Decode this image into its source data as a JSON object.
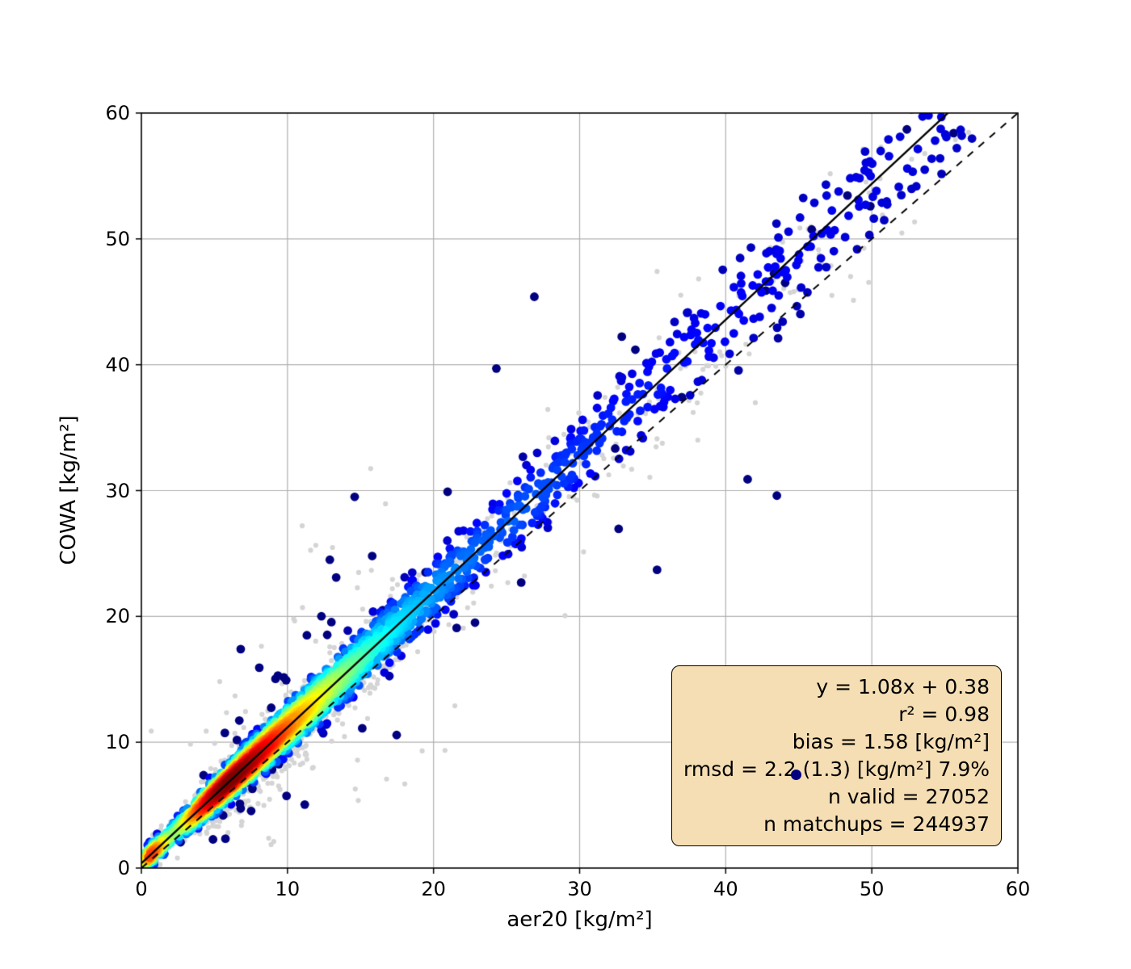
{
  "chart_data": {
    "type": "scatter",
    "title": "",
    "xlabel": "aer20 [kg/m²]",
    "ylabel": "COWA [kg/m²]",
    "xlim": [
      0,
      60
    ],
    "ylim": [
      0,
      60
    ],
    "xticks": [
      0,
      10,
      20,
      30,
      40,
      50,
      60
    ],
    "yticks": [
      0,
      10,
      20,
      30,
      40,
      50,
      60
    ],
    "grid": true,
    "grid_color": "#b0b0b0",
    "axes_color": "#000000",
    "identity_line": {
      "style": "dashed",
      "color": "#000000",
      "from": [
        0,
        0
      ],
      "to": [
        60,
        60
      ]
    },
    "fit_line": {
      "style": "solid",
      "color": "#000000",
      "slope": 1.08,
      "intercept": 0.38
    },
    "stats": {
      "equation": "y = 1.08x + 0.38",
      "r2": 0.98,
      "bias_kg_m2": 1.58,
      "rmsd_kg_m2": "2.2 (1.3)",
      "rmsd_percent": 7.9,
      "n_valid": 27052,
      "n_matchups": 244937
    },
    "series": [
      {
        "name": "matchups",
        "style": "small light gray dots",
        "color": "#d4d4d4"
      },
      {
        "name": "valid retrievals",
        "style": "density-colored dots, jet colormap (navy = low density, red = high density)",
        "densest_region_x": [
          5,
          11
        ]
      }
    ],
    "stray_point": {
      "x": 44.8,
      "y": 7.4,
      "color": "#000080",
      "radius": 6.5
    },
    "render": {
      "seed": 20,
      "gray": {
        "n": 1300,
        "color": "#d4d4d4",
        "radius": 3.1,
        "center_slope": 1.05,
        "center_intercept": 0.2,
        "sigma_base": 0.9,
        "sigma_slope": 0.055,
        "outlier_frac": 0.07,
        "outlier_mult": 4.0
      },
      "valid": {
        "n": 3000,
        "radius": 5.4,
        "sigma_base": 0.35,
        "sigma_slope": 0.045,
        "gamma": 0.45
      },
      "extra_outliers": {
        "n": 85,
        "radius": 5.4,
        "sigma_base": 2.2,
        "sigma_slope": 0.09
      },
      "mixture": [
        {
          "w": 0.06,
          "mu": 0.2,
          "s": 0.8
        },
        {
          "w": 0.72,
          "mu": 2.1,
          "s": 0.45
        },
        {
          "w": 0.16,
          "mu": 3.0,
          "s": 0.5
        },
        {
          "w": 0.06,
          "uniform": [
            25,
            57
          ]
        }
      ],
      "notable_outliers": [
        [
          26.9,
          45.4
        ],
        [
          24.3,
          39.7
        ],
        [
          14.6,
          29.5
        ],
        [
          15.8,
          24.8
        ],
        [
          35.3,
          23.7
        ],
        [
          6.8,
          17.4
        ],
        [
          12.9,
          24.5
        ],
        [
          41.5,
          30.9
        ],
        [
          52.4,
          58.7
        ],
        [
          55.6,
          58.4
        ],
        [
          49.9,
          52.6
        ],
        [
          43.5,
          29.6
        ]
      ]
    }
  },
  "axis_labels": {
    "x": "aer20 [kg/m²]",
    "y": "COWA [kg/m²]"
  },
  "stats_box": {
    "background": "#f5deb3",
    "border_color": "#000000",
    "lines": [
      "y = 1.08x + 0.38",
      "r² = 0.98",
      "bias = 1.58 [kg/m²]",
      "rmsd = 2.2 (1.3) [kg/m²] 7.9%",
      "n valid = 27052",
      "n matchups = 244937"
    ]
  }
}
